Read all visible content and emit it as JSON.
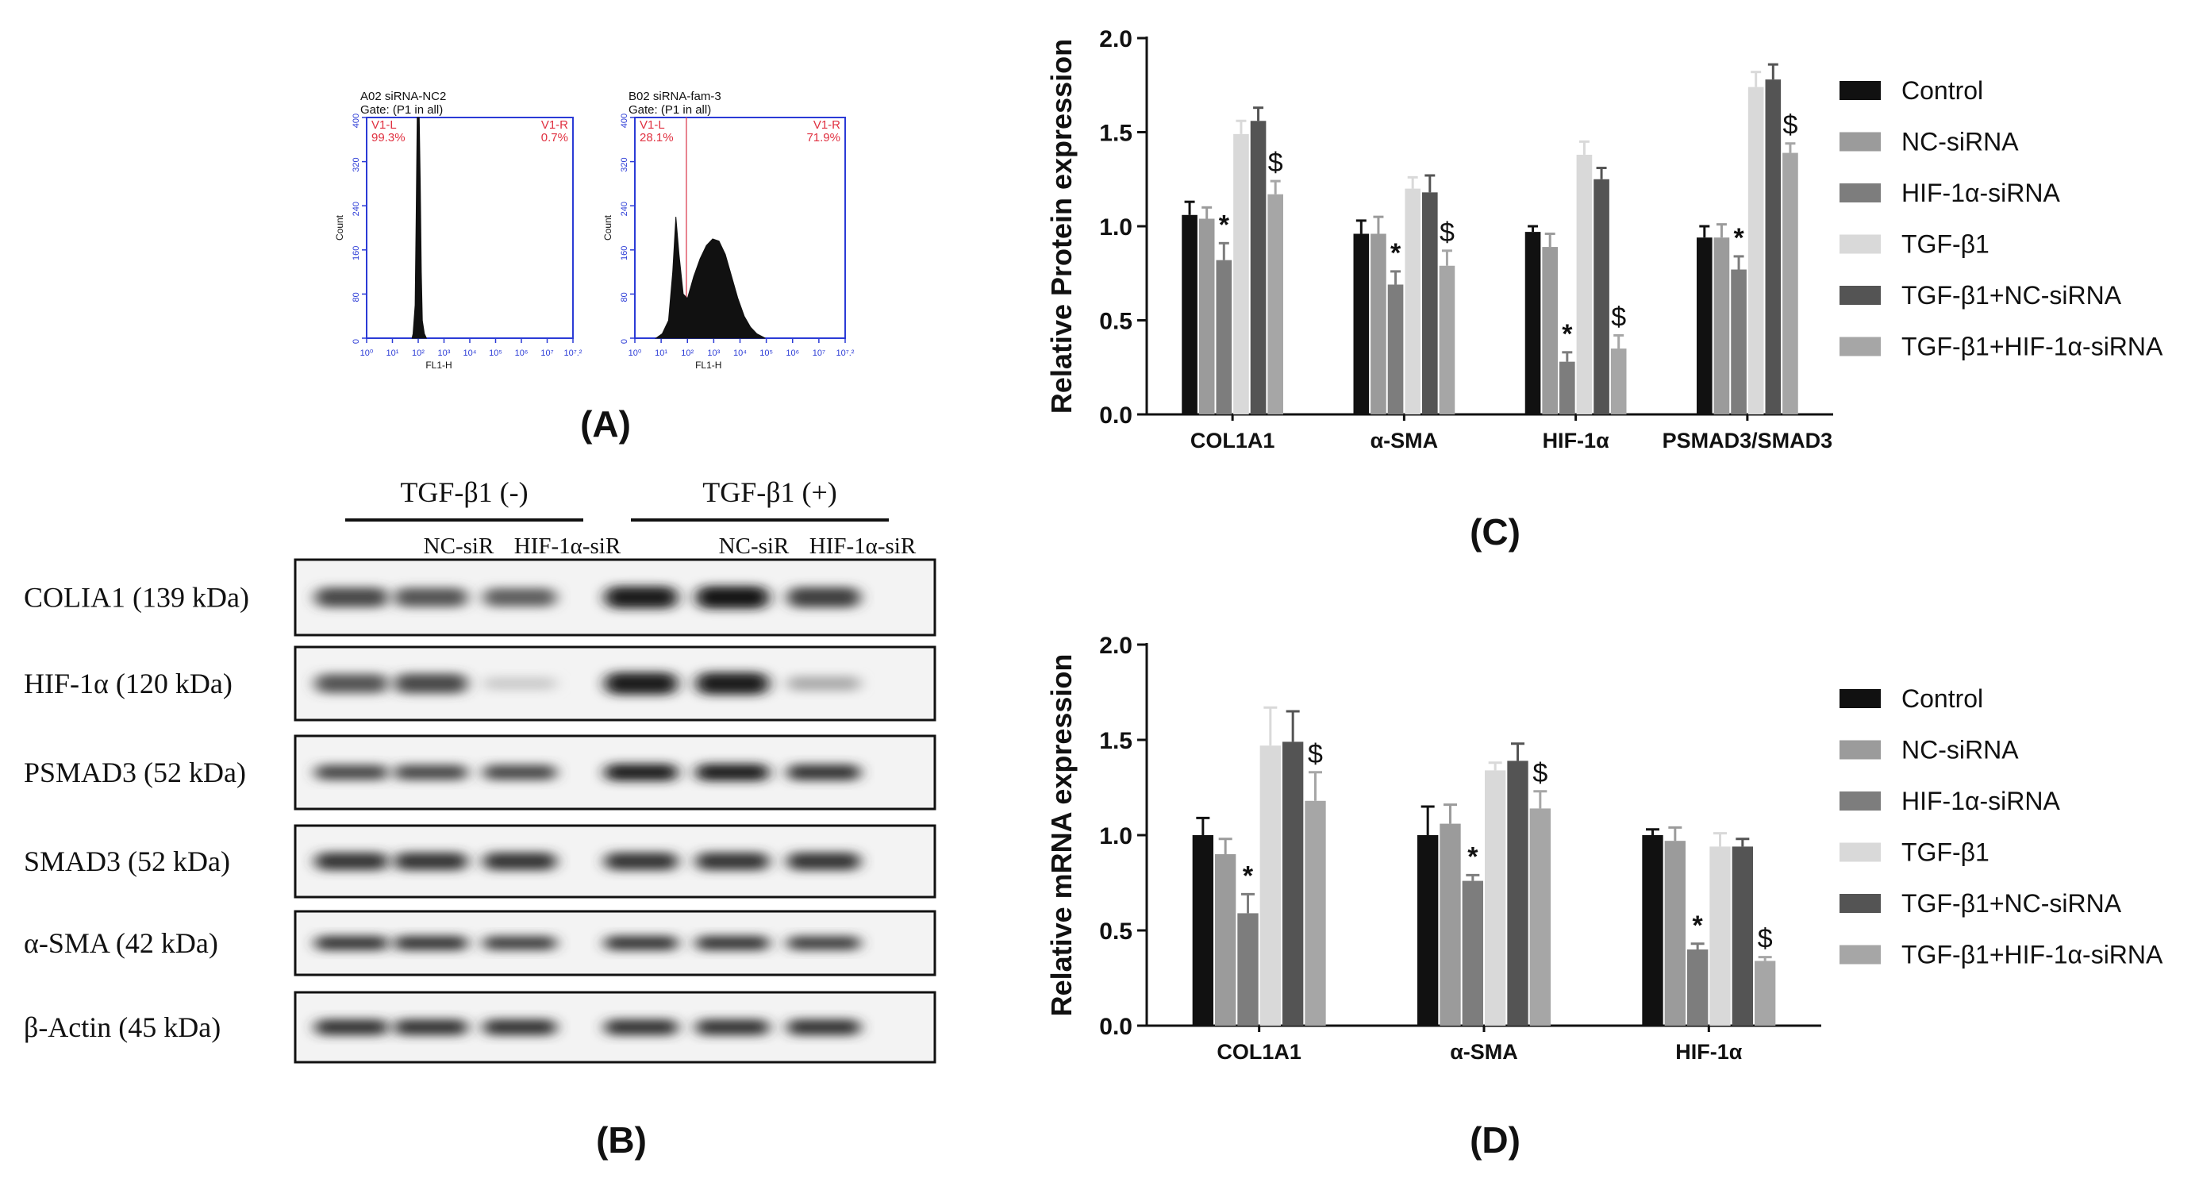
{
  "panel_labels": {
    "a": "(A)",
    "b": "(B)",
    "c": "(C)",
    "d": "(D)"
  },
  "flow": [
    {
      "title": "A02 siRNA-NC2",
      "gate": "Gate: (P1 in all)",
      "left_label": "V1-L",
      "left_pct": "99.3%",
      "right_label": "V1-R",
      "right_pct": "0.7%",
      "xlabel": "FL1-H",
      "ylabel": "Count",
      "yticks": [
        "0",
        "80",
        "160",
        "240",
        "320",
        "400"
      ],
      "xticks": [
        "10⁰",
        "10¹",
        "10²",
        "10³",
        "10⁴",
        "10⁵",
        "10⁶",
        "10⁷",
        "10⁷.²"
      ]
    },
    {
      "title": "B02 siRNA-fam-3",
      "gate": "Gate: (P1 in all)",
      "left_label": "V1-L",
      "left_pct": "28.1%",
      "right_label": "V1-R",
      "right_pct": "71.9%",
      "xlabel": "FL1-H",
      "ylabel": "Count",
      "yticks": [
        "0",
        "80",
        "160",
        "240",
        "320",
        "400"
      ],
      "xticks": [
        "10⁰",
        "10¹",
        "10²",
        "10³",
        "10⁴",
        "10⁵",
        "10⁶",
        "10⁷",
        "10⁷.²"
      ]
    }
  ],
  "blot": {
    "group_neg": "TGF-β1 (-)",
    "group_pos": "TGF-β1 (+)",
    "lane_labels": [
      "NC-siR",
      "HIF-1α-siR",
      "NC-siR",
      "HIF-1α-siR"
    ],
    "rows": [
      {
        "name": "COLIA1 (139 kDa)",
        "intensity": [
          0.75,
          0.7,
          0.65,
          0.95,
          1.0,
          0.8
        ],
        "thick": 1.3
      },
      {
        "name": "HIF-1α  (120 kDa)",
        "intensity": [
          0.7,
          0.75,
          0.15,
          0.95,
          0.95,
          0.3
        ],
        "thick": 1.3
      },
      {
        "name": "PSMAD3 (52 kDa)",
        "intensity": [
          0.75,
          0.75,
          0.75,
          0.95,
          0.95,
          0.85
        ],
        "thick": 1.0
      },
      {
        "name": "SMAD3    (52 kDa)",
        "intensity": [
          0.85,
          0.85,
          0.85,
          0.85,
          0.85,
          0.85
        ],
        "thick": 1.1
      },
      {
        "name": "α-SMA     (42 kDa)",
        "intensity": [
          0.85,
          0.85,
          0.8,
          0.85,
          0.85,
          0.8
        ],
        "thick": 0.9
      },
      {
        "name": "β-Actin   (45 kDa)",
        "intensity": [
          0.85,
          0.85,
          0.85,
          0.85,
          0.85,
          0.85
        ],
        "thick": 1.0
      }
    ]
  },
  "chart_data": [
    {
      "type": "bar",
      "ylabel": "Relative Protein expression",
      "ylim": [
        0,
        2.0
      ],
      "yticks": [
        "0.0",
        "0.5",
        "1.0",
        "1.5",
        "2.0"
      ],
      "categories": [
        "COL1A1",
        "α-SMA",
        "HIF-1α",
        "PSMAD3/SMAD3"
      ],
      "series": [
        {
          "name": "Control",
          "color": "#111111",
          "values": [
            1.06,
            0.96,
            0.97,
            0.94
          ],
          "errors": [
            0.07,
            0.07,
            0.03,
            0.06
          ]
        },
        {
          "name": "NC-siRNA",
          "color": "#9b9b9b",
          "values": [
            1.04,
            0.96,
            0.89,
            0.94
          ],
          "errors": [
            0.06,
            0.09,
            0.07,
            0.07
          ]
        },
        {
          "name": "HIF-1α-siRNA",
          "color": "#7d7d7d",
          "values": [
            0.82,
            0.69,
            0.28,
            0.77
          ],
          "errors": [
            0.09,
            0.07,
            0.05,
            0.07
          ]
        },
        {
          "name": "TGF-β1",
          "color": "#d9d9d9",
          "values": [
            1.49,
            1.2,
            1.38,
            1.74
          ],
          "errors": [
            0.07,
            0.06,
            0.07,
            0.08
          ]
        },
        {
          "name": "TGF-β1+NC-siRNA",
          "color": "#545454",
          "values": [
            1.56,
            1.18,
            1.25,
            1.78
          ],
          "errors": [
            0.07,
            0.09,
            0.06,
            0.08
          ]
        },
        {
          "name": "TGF-β1+HIF-1α-siRNA",
          "color": "#a6a6a6",
          "values": [
            1.17,
            0.79,
            0.35,
            1.39
          ],
          "errors": [
            0.07,
            0.08,
            0.07,
            0.05
          ]
        }
      ],
      "annotations": [
        {
          "series": 2,
          "category": 0,
          "text": "*"
        },
        {
          "series": 5,
          "category": 0,
          "text": "$"
        },
        {
          "series": 2,
          "category": 1,
          "text": "*"
        },
        {
          "series": 5,
          "category": 1,
          "text": "$"
        },
        {
          "series": 2,
          "category": 2,
          "text": "*"
        },
        {
          "series": 5,
          "category": 2,
          "text": "$"
        },
        {
          "series": 2,
          "category": 3,
          "text": "*"
        },
        {
          "series": 5,
          "category": 3,
          "text": "$"
        }
      ],
      "legend": "right"
    },
    {
      "type": "bar",
      "ylabel": "Relative mRNA expression",
      "ylim": [
        0,
        2.0
      ],
      "yticks": [
        "0.0",
        "0.5",
        "1.0",
        "1.5",
        "2.0"
      ],
      "categories": [
        "COL1A1",
        "α-SMA",
        "HIF-1α"
      ],
      "series": [
        {
          "name": "Control",
          "color": "#111111",
          "values": [
            1.0,
            1.0,
            1.0
          ],
          "errors": [
            0.09,
            0.15,
            0.03
          ]
        },
        {
          "name": "NC-siRNA",
          "color": "#9b9b9b",
          "values": [
            0.9,
            1.06,
            0.97
          ],
          "errors": [
            0.08,
            0.1,
            0.07
          ]
        },
        {
          "name": "HIF-1α-siRNA",
          "color": "#7d7d7d",
          "values": [
            0.59,
            0.76,
            0.4
          ],
          "errors": [
            0.1,
            0.03,
            0.03
          ]
        },
        {
          "name": "TGF-β1",
          "color": "#d9d9d9",
          "values": [
            1.47,
            1.34,
            0.94
          ],
          "errors": [
            0.2,
            0.04,
            0.07
          ]
        },
        {
          "name": "TGF-β1+NC-siRNA",
          "color": "#545454",
          "values": [
            1.49,
            1.39,
            0.94
          ],
          "errors": [
            0.16,
            0.09,
            0.04
          ]
        },
        {
          "name": "TGF-β1+HIF-1α-siRNA",
          "color": "#a6a6a6",
          "values": [
            1.18,
            1.14,
            0.34
          ],
          "errors": [
            0.15,
            0.09,
            0.02
          ]
        }
      ],
      "annotations": [
        {
          "series": 2,
          "category": 0,
          "text": "*"
        },
        {
          "series": 5,
          "category": 0,
          "text": "$"
        },
        {
          "series": 2,
          "category": 1,
          "text": "*"
        },
        {
          "series": 5,
          "category": 1,
          "text": "$"
        },
        {
          "series": 2,
          "category": 2,
          "text": "*"
        },
        {
          "series": 5,
          "category": 2,
          "text": "$"
        }
      ],
      "legend": "right"
    }
  ]
}
